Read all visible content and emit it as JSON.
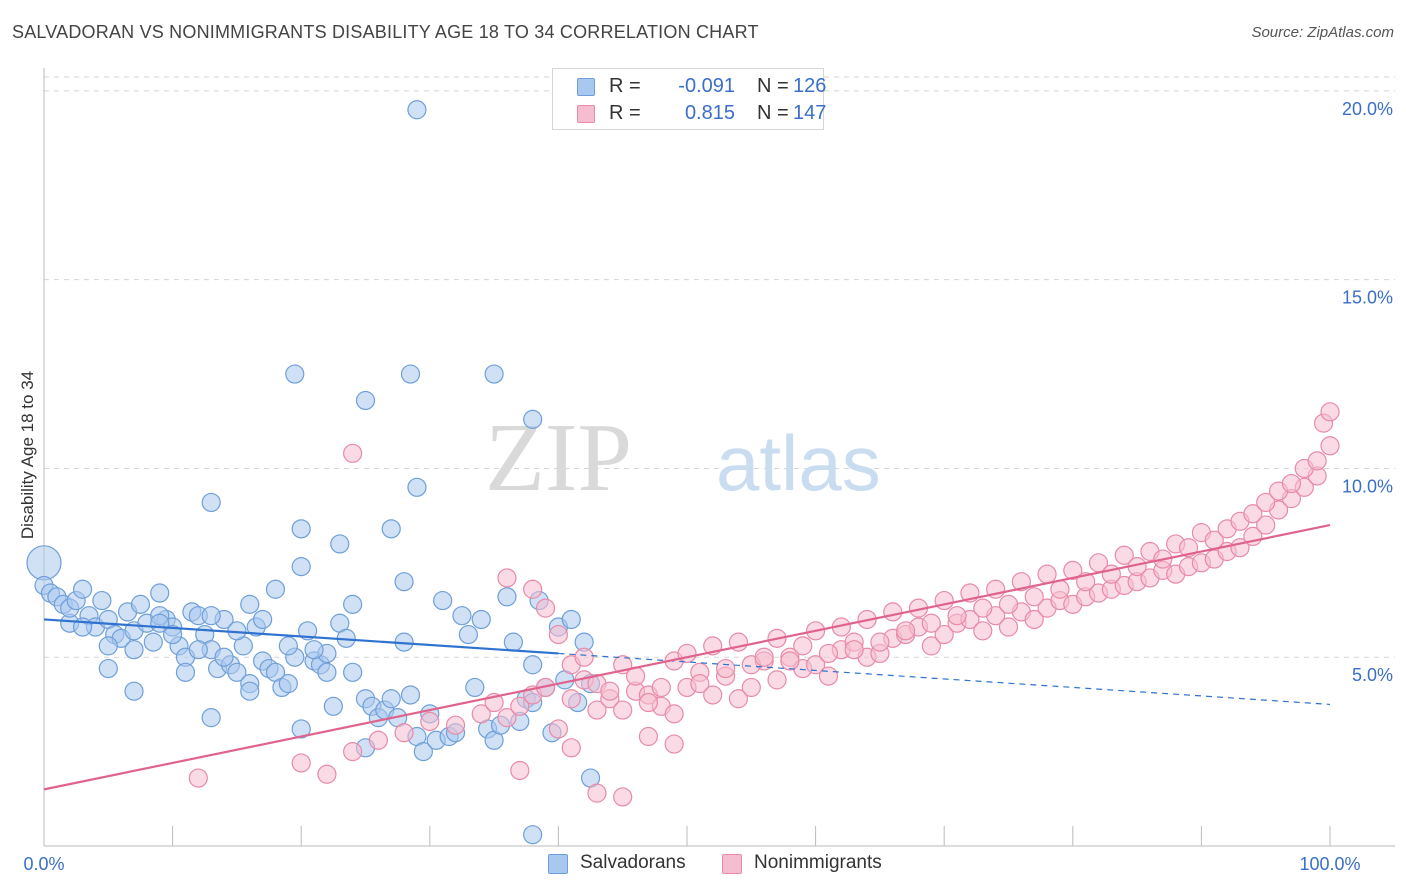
{
  "title": "SALVADORAN VS NONIMMIGRANTS DISABILITY AGE 18 TO 34 CORRELATION CHART",
  "source": "Source: ZipAtlas.com",
  "watermark": {
    "zip": "ZIP",
    "atlas": "atlas"
  },
  "colors": {
    "blue_fill": "#a9c8ef",
    "blue_stroke": "#6f9fd8",
    "blue_line": "#2f72d0",
    "pink_fill": "#f6bdd0",
    "pink_stroke": "#e88aa8",
    "pink_line": "#e0638e",
    "tick_label": "#3a6fc9",
    "grid": "#d5d5d5"
  },
  "legend": {
    "rows": [
      {
        "r_label": "R =",
        "r_value": "-0.091",
        "n_label": "N =",
        "n_value": "126",
        "color": "blue"
      },
      {
        "r_label": "R =",
        "r_value": "0.815",
        "n_label": "N =",
        "n_value": "147",
        "color": "pink"
      }
    ]
  },
  "chart_data": {
    "type": "scatter",
    "title": "SALVADORAN VS NONIMMIGRANTS DISABILITY AGE 18 TO 34 CORRELATION CHART",
    "xlabel": "",
    "ylabel": "Disability Age 18 to 34",
    "xlim": [
      0,
      100
    ],
    "ylim": [
      0,
      20.5
    ],
    "x_tick_labels": [
      "0.0%",
      "100.0%"
    ],
    "y_ticks": [
      5,
      10,
      15,
      20
    ],
    "y_tick_labels": [
      "5.0%",
      "10.0%",
      "15.0%",
      "20.0%"
    ],
    "grid": "horizontal dashed",
    "legend_position": "bottom-center",
    "series": [
      {
        "name": "Salvadorans",
        "color": "blue",
        "R": -0.091,
        "N": 126,
        "trend": {
          "x0": 0,
          "y0": 6.0,
          "x1": 40,
          "y1": 5.1,
          "dashed_to_x": 100,
          "dashed_end_y": 3.75
        },
        "points": [
          [
            0,
            7.5
          ],
          [
            0,
            6.9
          ],
          [
            0.5,
            6.7
          ],
          [
            1,
            6.6
          ],
          [
            1.5,
            6.4
          ],
          [
            2,
            5.9
          ],
          [
            2,
            6.3
          ],
          [
            2.5,
            6.5
          ],
          [
            3,
            6.8
          ],
          [
            3.5,
            6.1
          ],
          [
            4,
            5.8
          ],
          [
            4.5,
            6.5
          ],
          [
            5,
            6.0
          ],
          [
            5.5,
            5.6
          ],
          [
            6,
            5.5
          ],
          [
            6.5,
            6.2
          ],
          [
            7,
            5.7
          ],
          [
            7.5,
            6.4
          ],
          [
            8,
            5.9
          ],
          [
            8.5,
            5.4
          ],
          [
            9,
            6.7
          ],
          [
            9.5,
            6.0
          ],
          [
            10,
            5.8
          ],
          [
            10.5,
            5.3
          ],
          [
            11,
            5.0
          ],
          [
            11.5,
            6.2
          ],
          [
            12,
            6.1
          ],
          [
            12.5,
            5.6
          ],
          [
            13,
            5.2
          ],
          [
            13.5,
            4.7
          ],
          [
            14,
            6.0
          ],
          [
            14.5,
            4.8
          ],
          [
            15,
            4.6
          ],
          [
            15.5,
            5.3
          ],
          [
            16,
            6.4
          ],
          [
            16.5,
            5.8
          ],
          [
            17,
            4.9
          ],
          [
            17.5,
            4.7
          ],
          [
            18,
            4.6
          ],
          [
            18.5,
            4.2
          ],
          [
            19,
            4.3
          ],
          [
            19.5,
            5.0
          ],
          [
            20,
            3.1
          ],
          [
            20.5,
            5.7
          ],
          [
            21,
            4.9
          ],
          [
            21.5,
            4.8
          ],
          [
            22,
            5.1
          ],
          [
            22.5,
            3.7
          ],
          [
            23,
            5.9
          ],
          [
            23.5,
            5.5
          ],
          [
            24,
            4.6
          ],
          [
            25,
            3.9
          ],
          [
            25.5,
            3.7
          ],
          [
            26,
            3.4
          ],
          [
            26.5,
            3.6
          ],
          [
            27,
            3.9
          ],
          [
            27.5,
            3.4
          ],
          [
            28,
            7.0
          ],
          [
            28.5,
            4.0
          ],
          [
            29,
            2.9
          ],
          [
            29.5,
            2.5
          ],
          [
            30,
            3.5
          ],
          [
            30.5,
            2.8
          ],
          [
            31,
            6.5
          ],
          [
            31.5,
            2.9
          ],
          [
            32,
            3.0
          ],
          [
            32.5,
            6.1
          ],
          [
            33,
            5.6
          ],
          [
            33.5,
            4.2
          ],
          [
            34,
            6.0
          ],
          [
            34.5,
            3.1
          ],
          [
            35,
            2.8
          ],
          [
            35.5,
            3.2
          ],
          [
            36,
            6.6
          ],
          [
            36.5,
            5.4
          ],
          [
            37,
            3.3
          ],
          [
            37.5,
            3.9
          ],
          [
            38,
            4.8
          ],
          [
            38.5,
            6.5
          ],
          [
            39,
            4.2
          ],
          [
            39.5,
            3.0
          ],
          [
            40,
            5.8
          ],
          [
            40.5,
            4.4
          ],
          [
            41,
            6.0
          ],
          [
            41.5,
            3.8
          ],
          [
            42,
            5.4
          ],
          [
            42.5,
            4.3
          ],
          [
            3,
            5.8
          ],
          [
            5,
            5.3
          ],
          [
            7,
            5.2
          ],
          [
            9,
            6.1
          ],
          [
            10,
            5.6
          ],
          [
            11,
            4.6
          ],
          [
            13,
            6.1
          ],
          [
            15,
            5.7
          ],
          [
            16,
            4.3
          ],
          [
            17,
            6.0
          ],
          [
            18,
            6.8
          ],
          [
            19,
            5.3
          ],
          [
            20,
            8.4
          ],
          [
            20,
            7.4
          ],
          [
            21,
            5.2
          ],
          [
            22,
            4.6
          ],
          [
            23,
            8.0
          ],
          [
            24,
            6.4
          ],
          [
            25,
            2.6
          ],
          [
            25,
            11.8
          ],
          [
            27,
            8.4
          ],
          [
            28,
            5.4
          ],
          [
            29,
            9.5
          ],
          [
            19.5,
            12.5
          ],
          [
            29,
            19.5
          ],
          [
            13,
            9.1
          ],
          [
            28.5,
            12.5
          ],
          [
            35,
            12.5
          ],
          [
            38,
            11.3
          ],
          [
            38,
            3.8
          ],
          [
            38,
            0.3
          ],
          [
            42.5,
            1.8
          ],
          [
            13,
            3.4
          ],
          [
            5,
            4.7
          ],
          [
            7,
            4.1
          ],
          [
            9,
            5.9
          ],
          [
            12,
            5.2
          ],
          [
            14,
            5.0
          ],
          [
            16,
            4.1
          ]
        ]
      },
      {
        "name": "Nonimmigrants",
        "color": "pink",
        "R": 0.815,
        "N": 147,
        "trend": {
          "x0": 0,
          "y0": 1.5,
          "x1": 100,
          "y1": 8.5
        },
        "points": [
          [
            24,
            10.4
          ],
          [
            36,
            7.1
          ],
          [
            38,
            6.8
          ],
          [
            39,
            6.3
          ],
          [
            40,
            5.6
          ],
          [
            41,
            4.8
          ],
          [
            42,
            5.0
          ],
          [
            43,
            3.6
          ],
          [
            44,
            3.9
          ],
          [
            45,
            3.6
          ],
          [
            46,
            4.1
          ],
          [
            47,
            4.0
          ],
          [
            48,
            3.7
          ],
          [
            49,
            3.5
          ],
          [
            50,
            4.2
          ],
          [
            51,
            4.6
          ],
          [
            52,
            4.0
          ],
          [
            53,
            4.5
          ],
          [
            54,
            3.9
          ],
          [
            55,
            4.2
          ],
          [
            56,
            4.9
          ],
          [
            57,
            4.4
          ],
          [
            58,
            5.0
          ],
          [
            59,
            4.7
          ],
          [
            60,
            4.8
          ],
          [
            61,
            4.5
          ],
          [
            62,
            5.2
          ],
          [
            63,
            5.4
          ],
          [
            64,
            5.0
          ],
          [
            65,
            5.1
          ],
          [
            66,
            5.5
          ],
          [
            67,
            5.6
          ],
          [
            68,
            5.8
          ],
          [
            69,
            5.3
          ],
          [
            70,
            5.6
          ],
          [
            71,
            5.9
          ],
          [
            72,
            6.0
          ],
          [
            73,
            5.7
          ],
          [
            74,
            6.1
          ],
          [
            75,
            5.8
          ],
          [
            76,
            6.2
          ],
          [
            77,
            6.0
          ],
          [
            78,
            6.3
          ],
          [
            79,
            6.5
          ],
          [
            80,
            6.4
          ],
          [
            81,
            6.6
          ],
          [
            82,
            6.7
          ],
          [
            83,
            6.8
          ],
          [
            84,
            6.9
          ],
          [
            85,
            7.0
          ],
          [
            86,
            7.1
          ],
          [
            87,
            7.3
          ],
          [
            88,
            7.2
          ],
          [
            89,
            7.4
          ],
          [
            90,
            7.5
          ],
          [
            91,
            7.6
          ],
          [
            92,
            7.8
          ],
          [
            93,
            7.9
          ],
          [
            94,
            8.2
          ],
          [
            95,
            8.5
          ],
          [
            96,
            8.9
          ],
          [
            97,
            9.2
          ],
          [
            98,
            9.5
          ],
          [
            99,
            9.8
          ],
          [
            100,
            10.6
          ],
          [
            12,
            1.8
          ],
          [
            20,
            2.2
          ],
          [
            22,
            1.9
          ],
          [
            24,
            2.5
          ],
          [
            26,
            2.8
          ],
          [
            28,
            3.0
          ],
          [
            30,
            3.3
          ],
          [
            32,
            3.2
          ],
          [
            34,
            3.5
          ],
          [
            35,
            3.8
          ],
          [
            36,
            3.4
          ],
          [
            37,
            3.7
          ],
          [
            38,
            4.0
          ],
          [
            39,
            4.2
          ],
          [
            40,
            3.1
          ],
          [
            41,
            3.9
          ],
          [
            42,
            4.4
          ],
          [
            43,
            4.3
          ],
          [
            44,
            4.1
          ],
          [
            45,
            4.8
          ],
          [
            46,
            4.5
          ],
          [
            47,
            3.8
          ],
          [
            48,
            4.2
          ],
          [
            49,
            4.9
          ],
          [
            50,
            5.1
          ],
          [
            51,
            4.3
          ],
          [
            52,
            5.3
          ],
          [
            53,
            4.7
          ],
          [
            54,
            5.4
          ],
          [
            55,
            4.8
          ],
          [
            56,
            5.0
          ],
          [
            57,
            5.5
          ],
          [
            58,
            4.9
          ],
          [
            59,
            5.3
          ],
          [
            60,
            5.7
          ],
          [
            61,
            5.1
          ],
          [
            62,
            5.8
          ],
          [
            63,
            5.2
          ],
          [
            64,
            6.0
          ],
          [
            65,
            5.4
          ],
          [
            66,
            6.2
          ],
          [
            67,
            5.7
          ],
          [
            68,
            6.3
          ],
          [
            69,
            5.9
          ],
          [
            70,
            6.5
          ],
          [
            71,
            6.1
          ],
          [
            72,
            6.7
          ],
          [
            73,
            6.3
          ],
          [
            74,
            6.8
          ],
          [
            75,
            6.4
          ],
          [
            76,
            7.0
          ],
          [
            77,
            6.6
          ],
          [
            78,
            7.2
          ],
          [
            79,
            6.8
          ],
          [
            80,
            7.3
          ],
          [
            81,
            7.0
          ],
          [
            82,
            7.5
          ],
          [
            83,
            7.2
          ],
          [
            84,
            7.7
          ],
          [
            85,
            7.4
          ],
          [
            86,
            7.8
          ],
          [
            87,
            7.6
          ],
          [
            88,
            8.0
          ],
          [
            89,
            7.9
          ],
          [
            90,
            8.3
          ],
          [
            91,
            8.1
          ],
          [
            92,
            8.4
          ],
          [
            93,
            8.6
          ],
          [
            94,
            8.8
          ],
          [
            95,
            9.1
          ],
          [
            96,
            9.4
          ],
          [
            97,
            9.6
          ],
          [
            98,
            10.0
          ],
          [
            99,
            10.2
          ],
          [
            99.5,
            11.2
          ],
          [
            100,
            11.5
          ],
          [
            37,
            2.0
          ],
          [
            41,
            2.6
          ],
          [
            43,
            1.4
          ],
          [
            45,
            1.3
          ],
          [
            47,
            2.9
          ],
          [
            49,
            2.7
          ]
        ]
      }
    ]
  }
}
